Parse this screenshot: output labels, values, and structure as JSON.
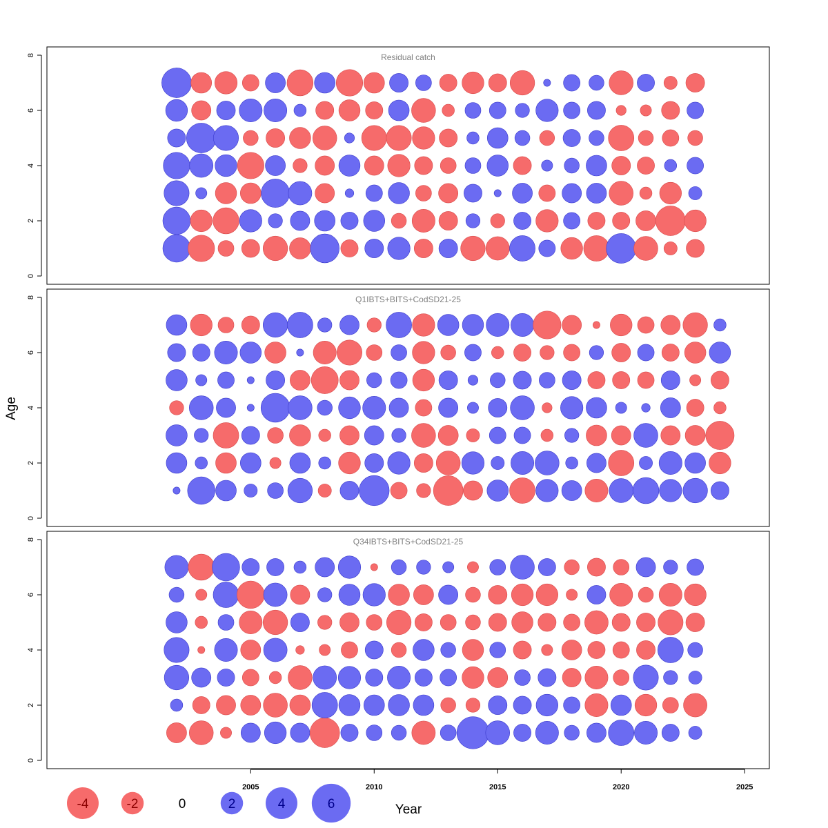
{
  "chart_data": {
    "type": "scatter",
    "xlabel": "Year",
    "ylabel": "Age",
    "xlim": [
      1996.75,
      2026.0
    ],
    "ylim": [
      -0.3,
      8.3
    ],
    "x_ticks": [
      2005,
      2010,
      2015,
      2020,
      2025
    ],
    "y_ticks": [
      0,
      2,
      4,
      6,
      8
    ],
    "colors": {
      "positive": "#6B6BF2",
      "negative": "#F66B6B"
    },
    "legend": {
      "values": [
        -4,
        -2,
        0,
        2,
        4,
        6
      ],
      "labels": [
        "-4",
        "-2",
        "0",
        "2",
        "4",
        "6"
      ]
    },
    "panels": [
      {
        "title": "Residual catch",
        "ages": [
          1,
          2,
          3,
          4,
          5,
          6,
          7
        ],
        "years": [
          2002,
          2003,
          2004,
          2005,
          2006,
          2007,
          2008,
          2009,
          2010,
          2011,
          2012,
          2013,
          2014,
          2015,
          2016,
          2017,
          2018,
          2019,
          2020,
          2021,
          2022,
          2023
        ],
        "residuals": [
          [
            3.0,
            -2.8,
            -1.0,
            -1.3,
            -2.4,
            -1.8,
            3.3,
            -1.2,
            1.4,
            2.0,
            -1.4,
            1.4,
            -2.4,
            -2.2,
            2.6,
            1.1,
            -1.9,
            -2.6,
            3.5,
            -2.3,
            -0.7,
            -1.3
          ],
          [
            3.0,
            -1.9,
            -2.7,
            2.0,
            0.8,
            1.5,
            1.7,
            1.2,
            1.8,
            -0.9,
            -2.1,
            -1.4,
            0.8,
            -0.8,
            1.2,
            -2.0,
            1.1,
            -1.2,
            -1.2,
            -1.6,
            -3.5,
            -1.9
          ],
          [
            2.5,
            0.5,
            -1.8,
            -1.7,
            3.2,
            2.2,
            -1.5,
            0.3,
            1.1,
            1.8,
            -1.0,
            -1.5,
            1.3,
            0.2,
            1.6,
            -1.1,
            1.5,
            1.6,
            -2.3,
            -0.6,
            -1.9,
            0.7
          ],
          [
            2.8,
            2.2,
            1.9,
            -2.8,
            1.6,
            -0.8,
            -1.5,
            1.8,
            -1.5,
            -2.0,
            -1.3,
            -1.0,
            1.0,
            1.8,
            -1.3,
            0.5,
            0.9,
            1.7,
            -1.4,
            -1.2,
            0.6,
            1.1
          ],
          [
            1.3,
            3.5,
            2.5,
            -0.9,
            -1.4,
            -1.8,
            -2.3,
            0.4,
            -2.5,
            -2.5,
            -2.0,
            -1.3,
            0.6,
            1.7,
            0.9,
            -0.9,
            1.2,
            0.9,
            -2.6,
            -0.9,
            -1.1,
            -0.9
          ],
          [
            1.9,
            -1.5,
            1.4,
            2.1,
            2.1,
            0.6,
            -1.3,
            -1.8,
            -1.2,
            1.7,
            -2.3,
            -0.6,
            1.0,
            1.1,
            0.8,
            2.0,
            1.1,
            1.3,
            -0.4,
            -0.5,
            -1.3,
            1.1
          ],
          [
            3.5,
            -1.7,
            -2.0,
            -1.1,
            1.6,
            -2.7,
            1.7,
            -2.8,
            -1.7,
            1.4,
            1.0,
            -1.2,
            -1.9,
            -1.3,
            -2.4,
            0.2,
            1.1,
            0.9,
            -2.3,
            1.2,
            -0.7,
            -1.4
          ]
        ]
      },
      {
        "title": "Q1IBTS+BITS+CodSD21-25",
        "ages": [
          1,
          2,
          3,
          4,
          5,
          6,
          7
        ],
        "years": [
          2002,
          2003,
          2004,
          2005,
          2006,
          2007,
          2008,
          2009,
          2010,
          2011,
          2012,
          2013,
          2014,
          2015,
          2016,
          2017,
          2018,
          2019,
          2020,
          2021,
          2022,
          2023,
          2024
        ],
        "residuals": [
          [
            0.2,
            3.0,
            1.7,
            0.7,
            1.0,
            2.4,
            -0.7,
            1.4,
            3.6,
            -1.1,
            -0.8,
            -3.5,
            -1.5,
            1.8,
            -2.6,
            2.0,
            1.6,
            -2.1,
            2.3,
            2.7,
            2.0,
            2.4,
            1.3
          ],
          [
            1.7,
            0.6,
            -1.7,
            1.7,
            -0.5,
            1.7,
            0.6,
            -1.9,
            1.4,
            2.0,
            -1.4,
            -2.3,
            2.0,
            0.7,
            2.1,
            2.3,
            0.6,
            1.5,
            -2.6,
            0.7,
            2.1,
            1.7,
            -1.9
          ],
          [
            1.8,
            0.8,
            -2.6,
            1.3,
            -1.0,
            -1.8,
            -0.6,
            -1.5,
            1.5,
            0.8,
            -2.3,
            -1.6,
            -0.7,
            1.1,
            1.1,
            -0.6,
            0.8,
            -1.7,
            -1.5,
            2.3,
            -1.5,
            -1.6,
            -3.2
          ],
          [
            -0.8,
            2.3,
            1.5,
            0.2,
            3.3,
            2.3,
            0.9,
            1.9,
            2.1,
            1.5,
            -1.1,
            1.5,
            0.5,
            1.4,
            2.3,
            -0.4,
            2.0,
            1.7,
            0.5,
            0.3,
            1.6,
            -1.2,
            -0.6
          ],
          [
            1.8,
            0.5,
            1.1,
            0.2,
            1.4,
            -1.6,
            -2.9,
            -1.5,
            0.9,
            1.1,
            -1.9,
            1.4,
            0.4,
            0.9,
            1.3,
            1.0,
            1.4,
            -1.2,
            -1.2,
            -1.1,
            1.4,
            -0.5,
            -1.3
          ],
          [
            1.3,
            1.2,
            2.1,
            1.8,
            -1.8,
            0.2,
            -2.1,
            -2.5,
            -1.0,
            1.0,
            -2.0,
            -0.9,
            1.1,
            -0.6,
            -1.2,
            -0.8,
            -1.1,
            0.8,
            -1.4,
            1.1,
            -1.2,
            -1.8,
            1.8
          ],
          [
            1.7,
            -1.9,
            -1.0,
            -1.3,
            2.4,
            2.6,
            0.8,
            1.5,
            -0.8,
            2.6,
            -2.0,
            1.8,
            1.8,
            2.1,
            2.1,
            -3.1,
            -1.5,
            -0.2,
            -1.9,
            -1.1,
            -1.5,
            -2.4,
            0.6
          ]
        ]
      },
      {
        "title": "Q34IBTS+BITS+CodSD21-25",
        "ages": [
          1,
          2,
          3,
          4,
          5,
          6,
          7
        ],
        "years": [
          2002,
          2003,
          2004,
          2005,
          2006,
          2007,
          2008,
          2009,
          2010,
          2011,
          2012,
          2013,
          2014,
          2015,
          2016,
          2017,
          2018,
          2019,
          2020,
          2021,
          2022,
          2023
        ],
        "residuals": [
          [
            -1.6,
            -2.3,
            -0.5,
            1.5,
            1.9,
            1.5,
            -3.5,
            1.2,
            1.0,
            0.9,
            -2.2,
            1.0,
            4.1,
            2.3,
            1.2,
            2.1,
            0.9,
            1.5,
            2.6,
            2.1,
            1.2,
            0.7
          ],
          [
            0.6,
            -1.2,
            -1.5,
            -1.6,
            -2.3,
            -1.7,
            2.6,
            1.8,
            1.7,
            1.8,
            1.7,
            -0.9,
            -0.8,
            1.4,
            1.3,
            1.9,
            1.1,
            -2.1,
            1.7,
            -1.9,
            -1.0,
            -2.2
          ],
          [
            2.4,
            1.5,
            1.2,
            -1.1,
            -0.6,
            -2.3,
            2.2,
            2.0,
            1.2,
            2.1,
            1.2,
            1.1,
            -1.9,
            -1.6,
            1.0,
            1.3,
            -1.4,
            -2.1,
            -1.0,
            2.5,
            0.8,
            0.7
          ],
          [
            2.5,
            -0.2,
            2.1,
            -1.6,
            2.2,
            -0.3,
            -0.5,
            -1.1,
            1.3,
            -0.9,
            1.8,
            0.9,
            -1.8,
            1.0,
            -1.3,
            -0.5,
            -1.6,
            -1.2,
            -1.1,
            -1.4,
            2.6,
            0.9
          ],
          [
            1.8,
            -0.6,
            1.0,
            -2.1,
            -2.4,
            1.4,
            -0.8,
            -1.5,
            -1.0,
            -2.4,
            -1.2,
            -1.0,
            -0.9,
            -1.3,
            -1.8,
            -1.3,
            -1.1,
            -2.2,
            -1.3,
            -1.4,
            -2.5,
            -1.4
          ],
          [
            0.9,
            -0.5,
            2.6,
            -3.0,
            2.2,
            -1.5,
            0.8,
            1.8,
            2.0,
            -1.8,
            -1.6,
            1.5,
            -0.9,
            -1.4,
            -1.9,
            -1.9,
            -0.5,
            1.4,
            -2.1,
            -0.9,
            -2.1,
            -1.9
          ],
          [
            2.2,
            -2.7,
            3.0,
            1.2,
            1.2,
            0.6,
            1.5,
            2.0,
            -0.2,
            0.9,
            0.8,
            0.5,
            -0.5,
            1.0,
            2.3,
            1.2,
            -0.9,
            -1.3,
            -1.0,
            1.5,
            0.8,
            1.1
          ]
        ]
      }
    ]
  }
}
